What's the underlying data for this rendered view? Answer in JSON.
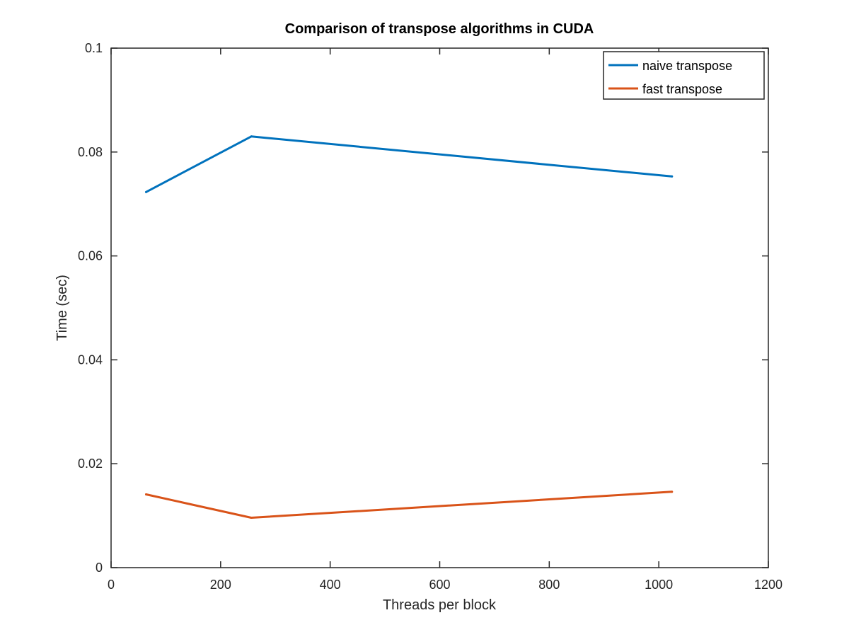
{
  "chart_data": {
    "type": "line",
    "title": "Comparison of transpose algorithms in CUDA",
    "xlabel": "Threads per block",
    "ylabel": "Time (sec)",
    "xlim": [
      0,
      1200
    ],
    "ylim": [
      0,
      0.1
    ],
    "x_ticks": [
      "0",
      "200",
      "400",
      "600",
      "800",
      "1000",
      "1200"
    ],
    "y_ticks": [
      "0",
      "0.02",
      "0.04",
      "0.06",
      "0.08",
      "0.1"
    ],
    "x": [
      64,
      256,
      1024
    ],
    "series": [
      {
        "name": "naive transpose",
        "color": "#0072bd",
        "values": [
          0.0723,
          0.083,
          0.0753
        ]
      },
      {
        "name": "fast transpose",
        "color": "#d95319",
        "values": [
          0.0141,
          0.0096,
          0.0146
        ]
      }
    ],
    "grid": false,
    "legend": "top-right"
  }
}
